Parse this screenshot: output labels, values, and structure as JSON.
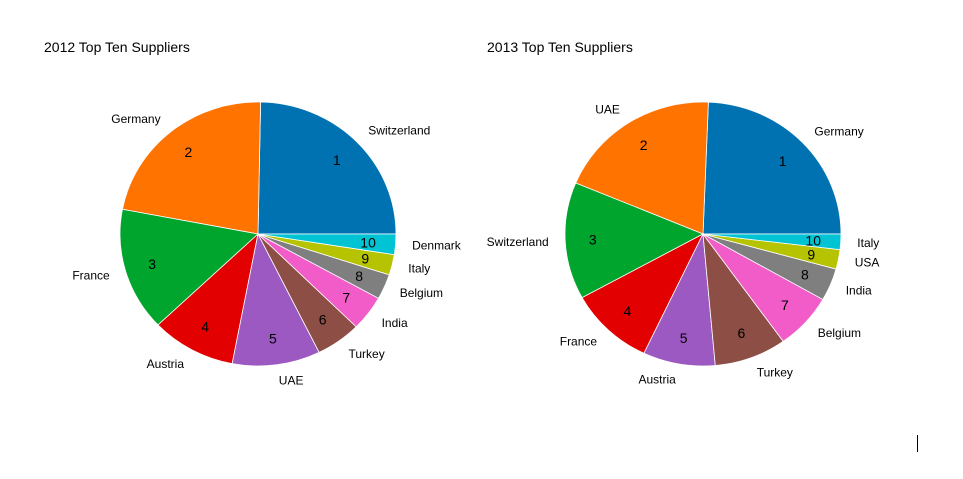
{
  "chart_data": [
    {
      "type": "pie",
      "title": "2012 Top Ten Suppliers",
      "categories": [
        "Switzerland",
        "Germany",
        "France",
        "Austria",
        "UAE",
        "Turkey",
        "India",
        "Belgium",
        "Italy",
        "Denmark"
      ],
      "slice_numbers": [
        "1",
        "2",
        "3",
        "4",
        "5",
        "6",
        "7",
        "8",
        "9",
        "10"
      ],
      "values": [
        24.7,
        22.3,
        15.1,
        9.9,
        10.3,
        5.3,
        4.3,
        3.1,
        2.5,
        2.5
      ],
      "colors": [
        "#0072b2",
        "#ff7300",
        "#00a52e",
        "#e30000",
        "#9b59c1",
        "#8c4e45",
        "#f25cc8",
        "#7f7f7f",
        "#b5c300",
        "#00c4d4"
      ]
    },
    {
      "type": "pie",
      "title": "2013 Top Ten Suppliers",
      "categories": [
        "Germany",
        "UAE",
        "Switzerland",
        "France",
        "Austria",
        "Turkey",
        "Belgium",
        "India",
        "USA",
        "Italy"
      ],
      "slice_numbers": [
        "1",
        "2",
        "3",
        "4",
        "5",
        "6",
        "7",
        "8",
        "9",
        "10"
      ],
      "values": [
        24.5,
        19.4,
        14.4,
        10.0,
        8.5,
        8.5,
        6.9,
        4.0,
        2.4,
        1.9
      ],
      "colors": [
        "#0072b2",
        "#ff7300",
        "#00a52e",
        "#e30000",
        "#9b59c1",
        "#8c4e45",
        "#f25cc8",
        "#7f7f7f",
        "#b5c300",
        "#00c4d4"
      ]
    }
  ]
}
